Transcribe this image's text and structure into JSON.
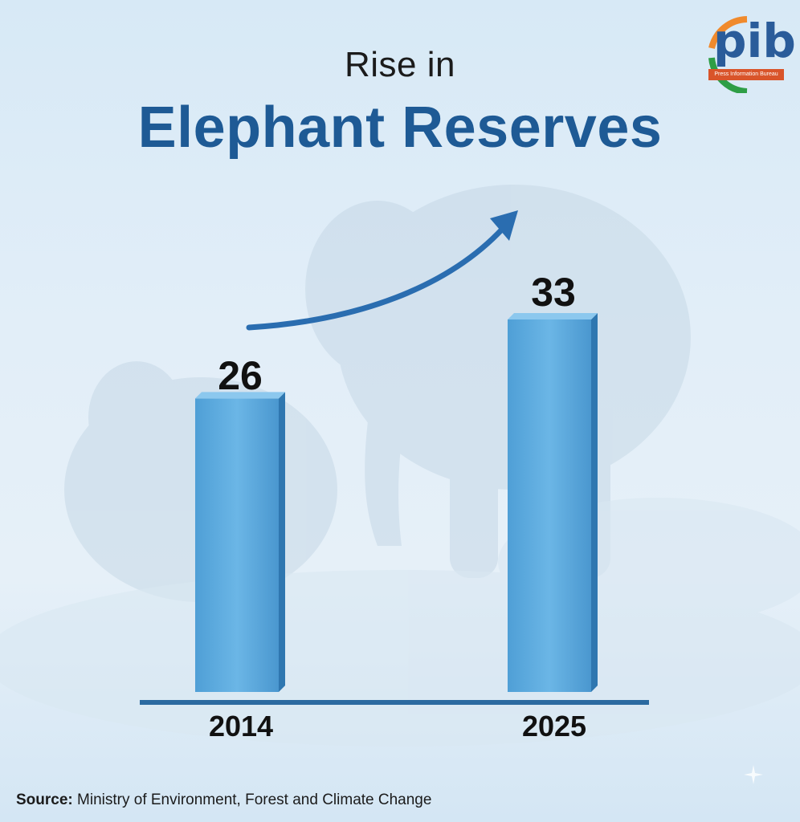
{
  "title": {
    "line1": "Rise in",
    "line2": "Elephant Reserves"
  },
  "logo": {
    "text": "pib",
    "strip": "Press Information Bureau"
  },
  "source": {
    "label": "Source:",
    "text": "Ministry of Environment, Forest and Climate Change"
  },
  "colors": {
    "title_blue": "#1e5a95",
    "bar": "#5aa9de",
    "bar_dark": "#2f77b0",
    "baseline": "#2b6aa0",
    "arrow": "#2a6db0"
  },
  "icons": [
    "elephant-illustration",
    "trend-arrow-icon",
    "pib-logo",
    "sparkle-icon"
  ],
  "chart_data": {
    "type": "bar",
    "title": "Rise in Elephant Reserves",
    "categories": [
      "2014",
      "2025"
    ],
    "values": [
      26,
      33
    ],
    "data_labels": [
      "26",
      "33"
    ],
    "ylim": [
      0,
      50
    ],
    "grid": false,
    "legend": "none",
    "trend": "increase"
  }
}
